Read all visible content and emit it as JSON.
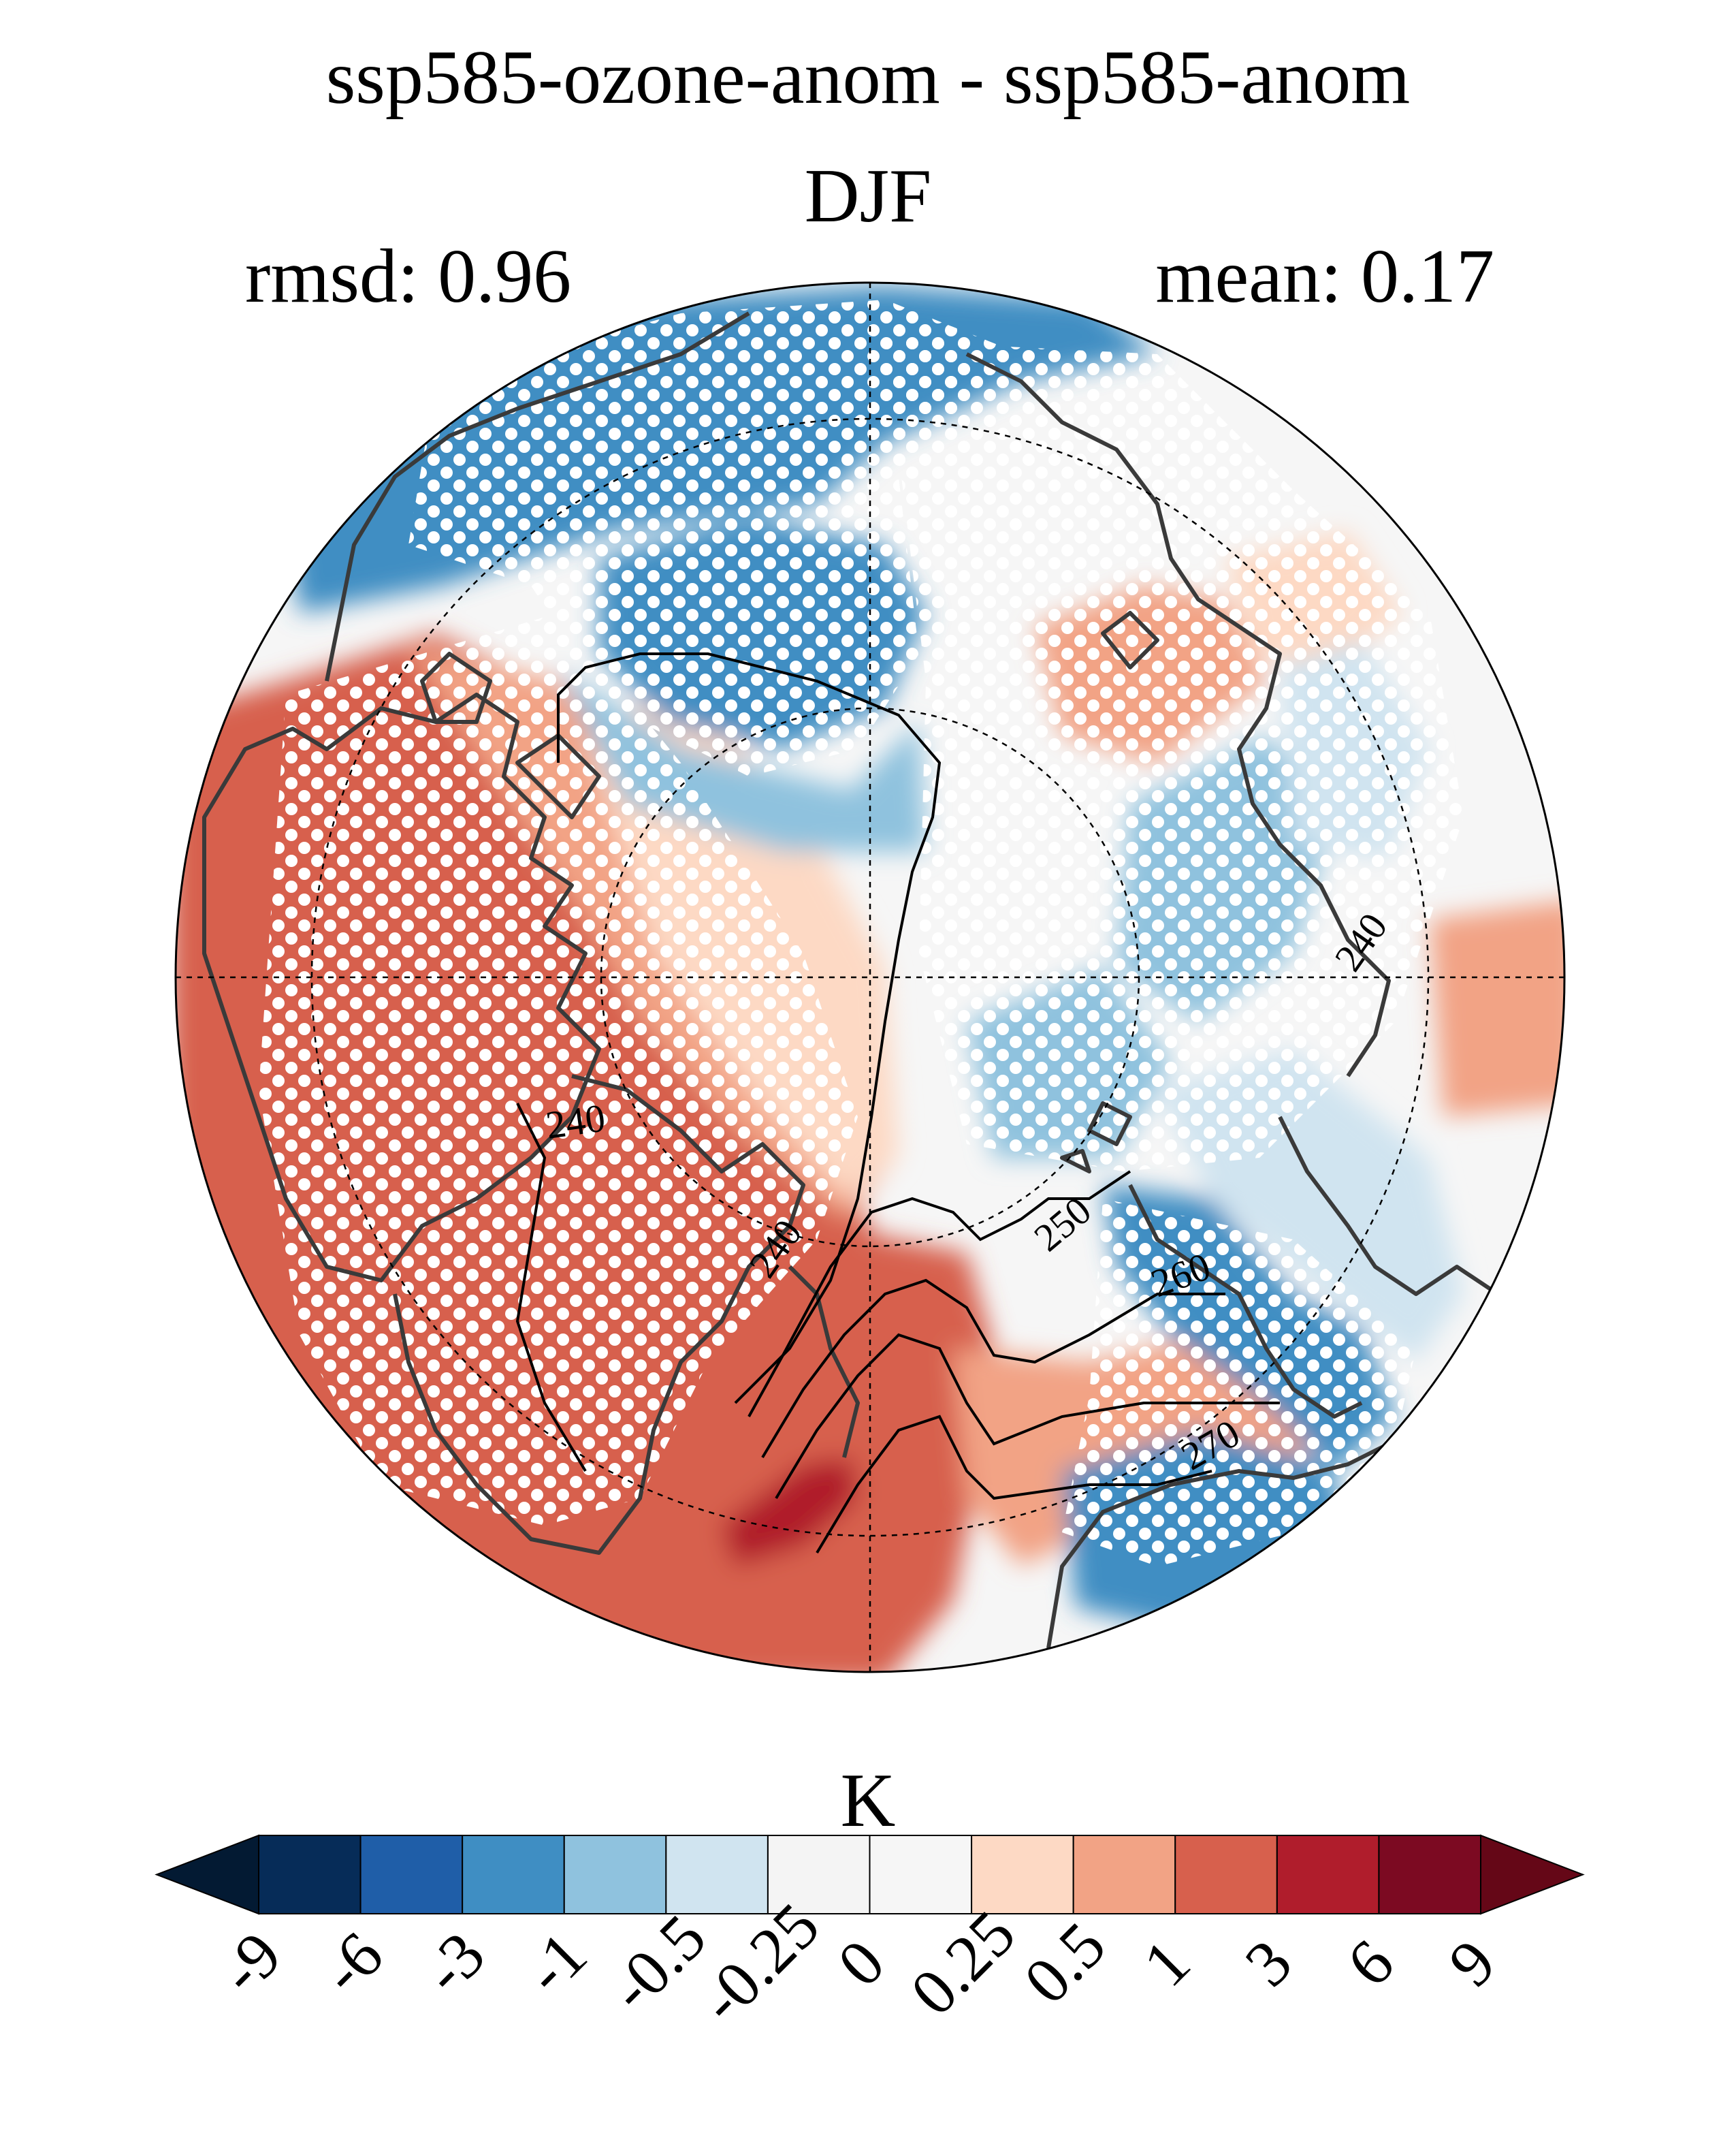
{
  "title": "ssp585-ozone-anom - ssp585-anom",
  "season": "DJF",
  "rmsd": "rmsd: 0.96",
  "mean": "mean: 0.17",
  "colorbar": {
    "unit": "K",
    "ticks": [
      "-9",
      "-6",
      "-3",
      "-1",
      "-0.5",
      "-0.25",
      "0",
      "0.25",
      "0.5",
      "1",
      "3",
      "6",
      "9"
    ],
    "colors": [
      "#062c58",
      "#1f5ea8",
      "#3f8ec3",
      "#8fc2de",
      "#d0e4f0",
      "#f4f4f4",
      "#f6f6f6",
      "#fdd9c4",
      "#f2a385",
      "#d7604d",
      "#b01d2c",
      "#7c0a22"
    ],
    "under_color": "#031a33",
    "over_color": "#650717"
  },
  "contour_labels": [
    "240",
    "240",
    "240",
    "250",
    "260",
    "270"
  ],
  "map": {
    "projection": "north-polar-stereographic",
    "field": "temperature anomaly difference",
    "stippling": "white dots where significant"
  }
}
